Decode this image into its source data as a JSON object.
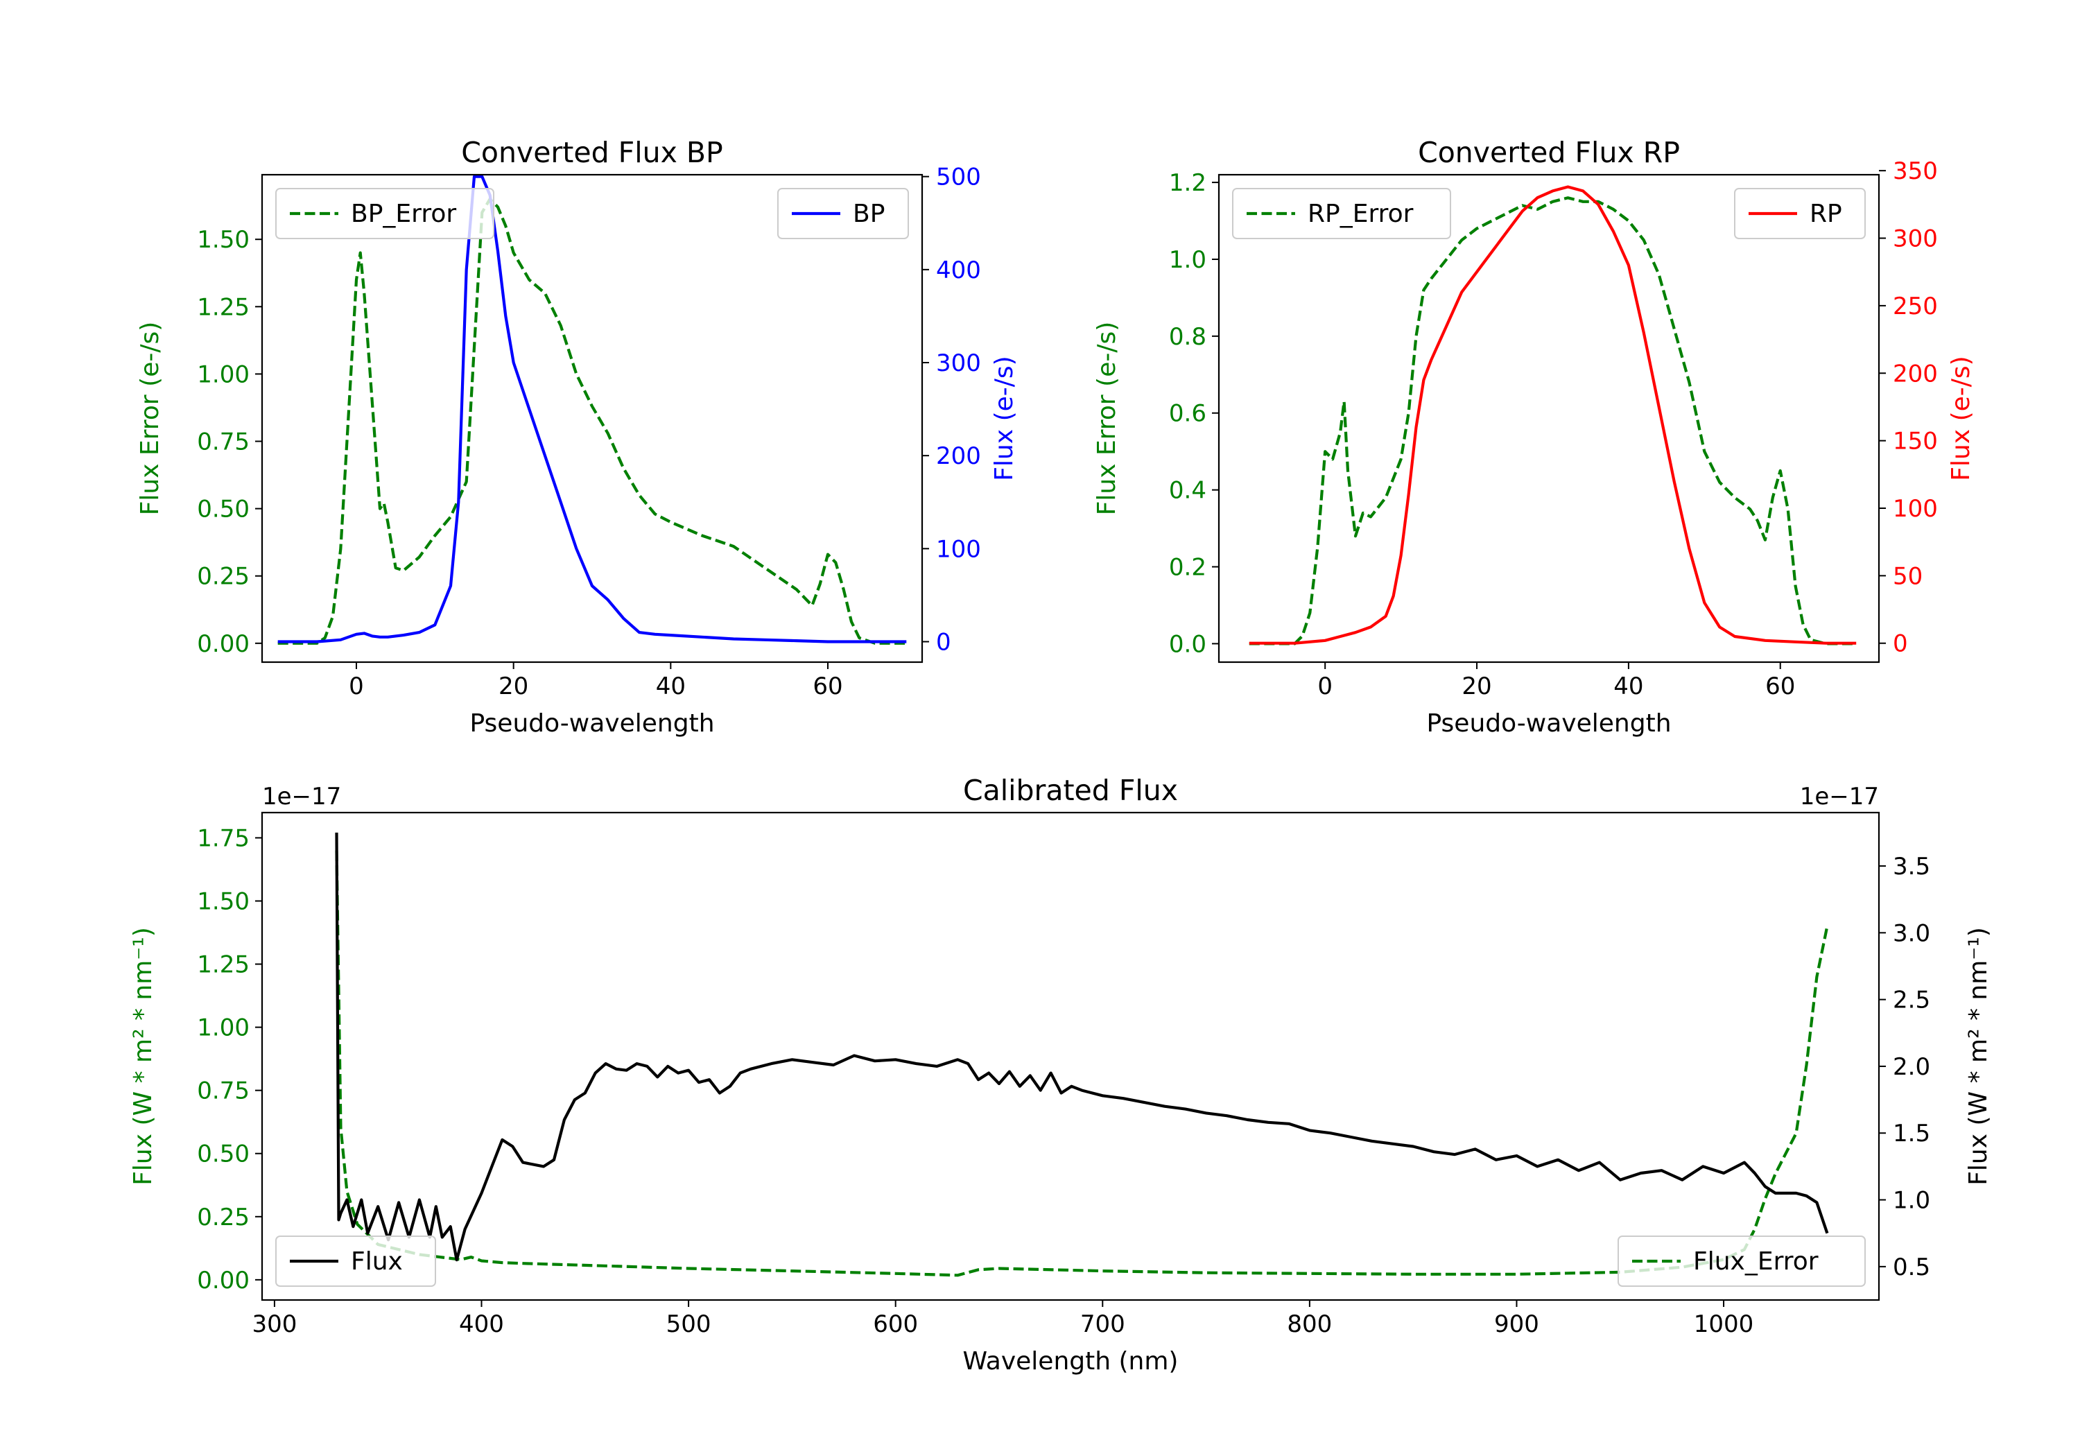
{
  "colors": {
    "green": "#008000",
    "blue": "#0000ff",
    "red": "#ff0000",
    "black": "#000000"
  },
  "chart_data": [
    {
      "id": "bp",
      "type": "line",
      "title": "Converted Flux BP",
      "xlabel": "Pseudo-wavelength",
      "ylabel_left": "Flux Error (e-/s)",
      "ylabel_right": "Flux (e-/s)",
      "xlim": [
        -12,
        72
      ],
      "ylim_left": [
        -0.07,
        1.74
      ],
      "ylim_right": [
        -22,
        502
      ],
      "xticks": [
        0,
        20,
        40,
        60
      ],
      "xtick_labels": [
        "0",
        "20",
        "40",
        "60"
      ],
      "yticks_left": [
        0,
        0.25,
        0.5,
        0.75,
        1.0,
        1.25,
        1.5
      ],
      "yticks_left_labels": [
        "0.00",
        "0.25",
        "0.50",
        "0.75",
        "1.00",
        "1.25",
        "1.50"
      ],
      "yticks_right": [
        0,
        100,
        200,
        300,
        400,
        500
      ],
      "yticks_right_labels": [
        "0",
        "100",
        "200",
        "300",
        "400",
        "500"
      ],
      "legend_left": "BP_Error",
      "legend_right": "BP",
      "series": [
        {
          "name": "BP_Error",
          "axis": "left",
          "color": "#008000",
          "style": "dashed",
          "x": [
            -10,
            -5,
            -4,
            -3,
            -2,
            -1,
            0,
            0.5,
            1,
            2,
            3,
            3.5,
            4,
            5,
            6,
            8,
            10,
            12,
            14,
            15,
            16,
            17,
            18,
            19,
            20,
            22,
            24,
            26,
            28,
            30,
            32,
            34,
            36,
            38,
            40,
            44,
            48,
            52,
            56,
            58,
            59,
            60,
            61,
            62,
            63,
            64,
            66,
            70
          ],
          "values": [
            0,
            0,
            0.02,
            0.1,
            0.35,
            0.85,
            1.35,
            1.45,
            1.3,
            0.9,
            0.5,
            0.52,
            0.45,
            0.28,
            0.27,
            0.32,
            0.4,
            0.47,
            0.6,
            1.1,
            1.6,
            1.65,
            1.62,
            1.55,
            1.45,
            1.35,
            1.3,
            1.18,
            1.0,
            0.88,
            0.78,
            0.65,
            0.55,
            0.48,
            0.45,
            0.4,
            0.36,
            0.28,
            0.2,
            0.14,
            0.22,
            0.33,
            0.3,
            0.2,
            0.08,
            0.02,
            0,
            0
          ]
        },
        {
          "name": "BP",
          "axis": "right",
          "color": "#0000ff",
          "style": "solid",
          "x": [
            -10,
            -5,
            -2,
            0,
            1,
            2,
            3,
            4,
            6,
            8,
            10,
            12,
            13,
            14,
            15,
            16,
            17,
            18,
            19,
            20,
            22,
            24,
            26,
            28,
            30,
            32,
            34,
            36,
            38,
            40,
            44,
            48,
            52,
            56,
            60,
            64,
            70
          ],
          "values": [
            0,
            0,
            2,
            8,
            9,
            6,
            5,
            5,
            7,
            10,
            18,
            60,
            150,
            400,
            500,
            500,
            480,
            420,
            350,
            300,
            250,
            200,
            150,
            100,
            60,
            45,
            25,
            10,
            8,
            7,
            5,
            3,
            2,
            1,
            0,
            0,
            0
          ]
        }
      ]
    },
    {
      "id": "rp",
      "type": "line",
      "title": "Converted Flux RP",
      "xlabel": "Pseudo-wavelength",
      "ylabel_left": "Flux Error (e-/s)",
      "ylabel_right": "Flux (e-/s)",
      "xlim": [
        -14,
        73
      ],
      "ylim_left": [
        -0.048,
        1.22
      ],
      "ylim_right": [
        -14,
        347
      ],
      "xticks": [
        0,
        20,
        40,
        60
      ],
      "xtick_labels": [
        "0",
        "20",
        "40",
        "60"
      ],
      "yticks_left": [
        0,
        0.2,
        0.4,
        0.6,
        0.8,
        1.0,
        1.2
      ],
      "yticks_left_labels": [
        "0.0",
        "0.2",
        "0.4",
        "0.6",
        "0.8",
        "1.0",
        "1.2"
      ],
      "yticks_right": [
        0,
        50,
        100,
        150,
        200,
        250,
        300,
        350
      ],
      "yticks_right_labels": [
        "0",
        "50",
        "100",
        "150",
        "200",
        "250",
        "300",
        "350"
      ],
      "legend_left": "RP_Error",
      "legend_right": "RP",
      "series": [
        {
          "name": "RP_Error",
          "axis": "left",
          "color": "#008000",
          "style": "dashed",
          "x": [
            -10,
            -4,
            -3,
            -2,
            -1,
            0,
            1,
            2,
            2.5,
            3,
            4,
            5,
            6,
            8,
            10,
            11,
            12,
            13,
            14,
            16,
            18,
            20,
            22,
            24,
            26,
            28,
            30,
            32,
            34,
            36,
            38,
            40,
            42,
            44,
            46,
            48,
            50,
            52,
            54,
            56,
            57,
            58,
            59,
            60,
            61,
            62,
            63,
            64,
            66,
            70
          ],
          "values": [
            0,
            0,
            0.02,
            0.08,
            0.25,
            0.5,
            0.48,
            0.55,
            0.63,
            0.45,
            0.28,
            0.34,
            0.33,
            0.38,
            0.48,
            0.6,
            0.8,
            0.92,
            0.95,
            1.0,
            1.05,
            1.08,
            1.1,
            1.12,
            1.14,
            1.13,
            1.15,
            1.16,
            1.15,
            1.15,
            1.13,
            1.1,
            1.05,
            0.96,
            0.82,
            0.68,
            0.5,
            0.42,
            0.38,
            0.35,
            0.32,
            0.27,
            0.38,
            0.45,
            0.35,
            0.15,
            0.05,
            0.01,
            0,
            0
          ]
        },
        {
          "name": "RP",
          "axis": "right",
          "color": "#ff0000",
          "style": "solid",
          "x": [
            -10,
            -4,
            0,
            2,
            4,
            6,
            8,
            9,
            10,
            11,
            12,
            13,
            14,
            16,
            18,
            20,
            22,
            24,
            26,
            28,
            30,
            32,
            34,
            36,
            38,
            40,
            42,
            44,
            46,
            48,
            50,
            52,
            54,
            58,
            62,
            66,
            70
          ],
          "values": [
            0,
            0,
            2,
            5,
            8,
            12,
            20,
            35,
            65,
            110,
            160,
            195,
            210,
            235,
            260,
            275,
            290,
            305,
            320,
            330,
            335,
            338,
            335,
            325,
            305,
            280,
            230,
            175,
            120,
            70,
            30,
            12,
            5,
            2,
            1,
            0,
            0
          ]
        }
      ]
    },
    {
      "id": "calibrated",
      "type": "line",
      "title": "Calibrated Flux",
      "xlabel": "Wavelength (nm)",
      "ylabel_left": "Flux (W * m² * nm⁻¹)",
      "ylabel_right": "Flux (W * m² * nm⁻¹)",
      "left_offset_label": "1e−17",
      "right_offset_label": "1e−17",
      "xlim": [
        294,
        1075
      ],
      "ylim_left": [
        -0.08,
        1.85
      ],
      "ylim_right": [
        0.25,
        3.9
      ],
      "xticks": [
        300,
        400,
        500,
        600,
        700,
        800,
        900,
        1000
      ],
      "xtick_labels": [
        "300",
        "400",
        "500",
        "600",
        "700",
        "800",
        "900",
        "1000"
      ],
      "yticks_left": [
        0,
        0.25,
        0.5,
        0.75,
        1.0,
        1.25,
        1.5,
        1.75
      ],
      "yticks_left_labels": [
        "0.00",
        "0.25",
        "0.50",
        "0.75",
        "1.00",
        "1.25",
        "1.50",
        "1.75"
      ],
      "yticks_right": [
        0.5,
        1.0,
        1.5,
        2.0,
        2.5,
        3.0,
        3.5
      ],
      "yticks_right_labels": [
        "0.5",
        "1.0",
        "1.5",
        "2.0",
        "2.5",
        "3.0",
        "3.5"
      ],
      "legend_left": "Flux",
      "legend_right": "Flux_Error",
      "series": [
        {
          "name": "Flux_Error",
          "axis": "left",
          "color": "#008000",
          "style": "dashed",
          "x": [
            330,
            332,
            335,
            340,
            350,
            360,
            370,
            380,
            390,
            395,
            400,
            410,
            420,
            440,
            460,
            500,
            550,
            600,
            630,
            640,
            650,
            700,
            750,
            800,
            850,
            900,
            950,
            980,
            1000,
            1010,
            1015,
            1020,
            1025,
            1030,
            1035,
            1040,
            1045,
            1050
          ],
          "values": [
            1.7,
            0.6,
            0.35,
            0.22,
            0.14,
            0.12,
            0.1,
            0.09,
            0.08,
            0.09,
            0.075,
            0.068,
            0.065,
            0.06,
            0.055,
            0.045,
            0.035,
            0.025,
            0.018,
            0.04,
            0.045,
            0.035,
            0.028,
            0.025,
            0.022,
            0.022,
            0.03,
            0.05,
            0.08,
            0.12,
            0.2,
            0.32,
            0.42,
            0.5,
            0.58,
            0.85,
            1.2,
            1.4
          ]
        },
        {
          "name": "Flux",
          "axis": "right",
          "color": "#000000",
          "style": "solid",
          "x": [
            330,
            331,
            332,
            335,
            338,
            342,
            345,
            350,
            355,
            360,
            365,
            370,
            375,
            378,
            381,
            385,
            388,
            392,
            400,
            405,
            410,
            415,
            420,
            430,
            435,
            440,
            445,
            450,
            455,
            460,
            465,
            470,
            475,
            480,
            485,
            490,
            495,
            500,
            505,
            510,
            515,
            520,
            525,
            530,
            540,
            550,
            560,
            570,
            580,
            590,
            600,
            610,
            620,
            630,
            635,
            640,
            645,
            650,
            655,
            660,
            665,
            670,
            675,
            680,
            685,
            690,
            700,
            710,
            720,
            730,
            740,
            750,
            760,
            770,
            780,
            790,
            800,
            810,
            820,
            830,
            840,
            850,
            860,
            870,
            880,
            890,
            900,
            910,
            920,
            930,
            940,
            950,
            960,
            970,
            980,
            990,
            1000,
            1010,
            1015,
            1020,
            1025,
            1030,
            1035,
            1040,
            1045,
            1050
          ],
          "values": [
            3.75,
            0.85,
            0.9,
            1.0,
            0.8,
            1.0,
            0.75,
            0.95,
            0.7,
            0.98,
            0.72,
            1.0,
            0.72,
            0.95,
            0.72,
            0.8,
            0.55,
            0.78,
            1.05,
            1.25,
            1.45,
            1.4,
            1.28,
            1.25,
            1.3,
            1.6,
            1.75,
            1.8,
            1.95,
            2.02,
            1.98,
            1.97,
            2.02,
            2.0,
            1.92,
            2.0,
            1.95,
            1.97,
            1.88,
            1.9,
            1.8,
            1.85,
            1.95,
            1.98,
            2.02,
            2.05,
            2.03,
            2.01,
            2.08,
            2.04,
            2.05,
            2.02,
            2.0,
            2.05,
            2.02,
            1.9,
            1.95,
            1.87,
            1.96,
            1.85,
            1.93,
            1.82,
            1.95,
            1.8,
            1.85,
            1.82,
            1.78,
            1.76,
            1.73,
            1.7,
            1.68,
            1.65,
            1.63,
            1.6,
            1.58,
            1.57,
            1.52,
            1.5,
            1.47,
            1.44,
            1.42,
            1.4,
            1.36,
            1.34,
            1.38,
            1.3,
            1.33,
            1.25,
            1.3,
            1.22,
            1.28,
            1.15,
            1.2,
            1.22,
            1.15,
            1.25,
            1.2,
            1.28,
            1.2,
            1.1,
            1.05,
            1.05,
            1.05,
            1.03,
            0.98,
            0.75
          ]
        }
      ]
    }
  ]
}
